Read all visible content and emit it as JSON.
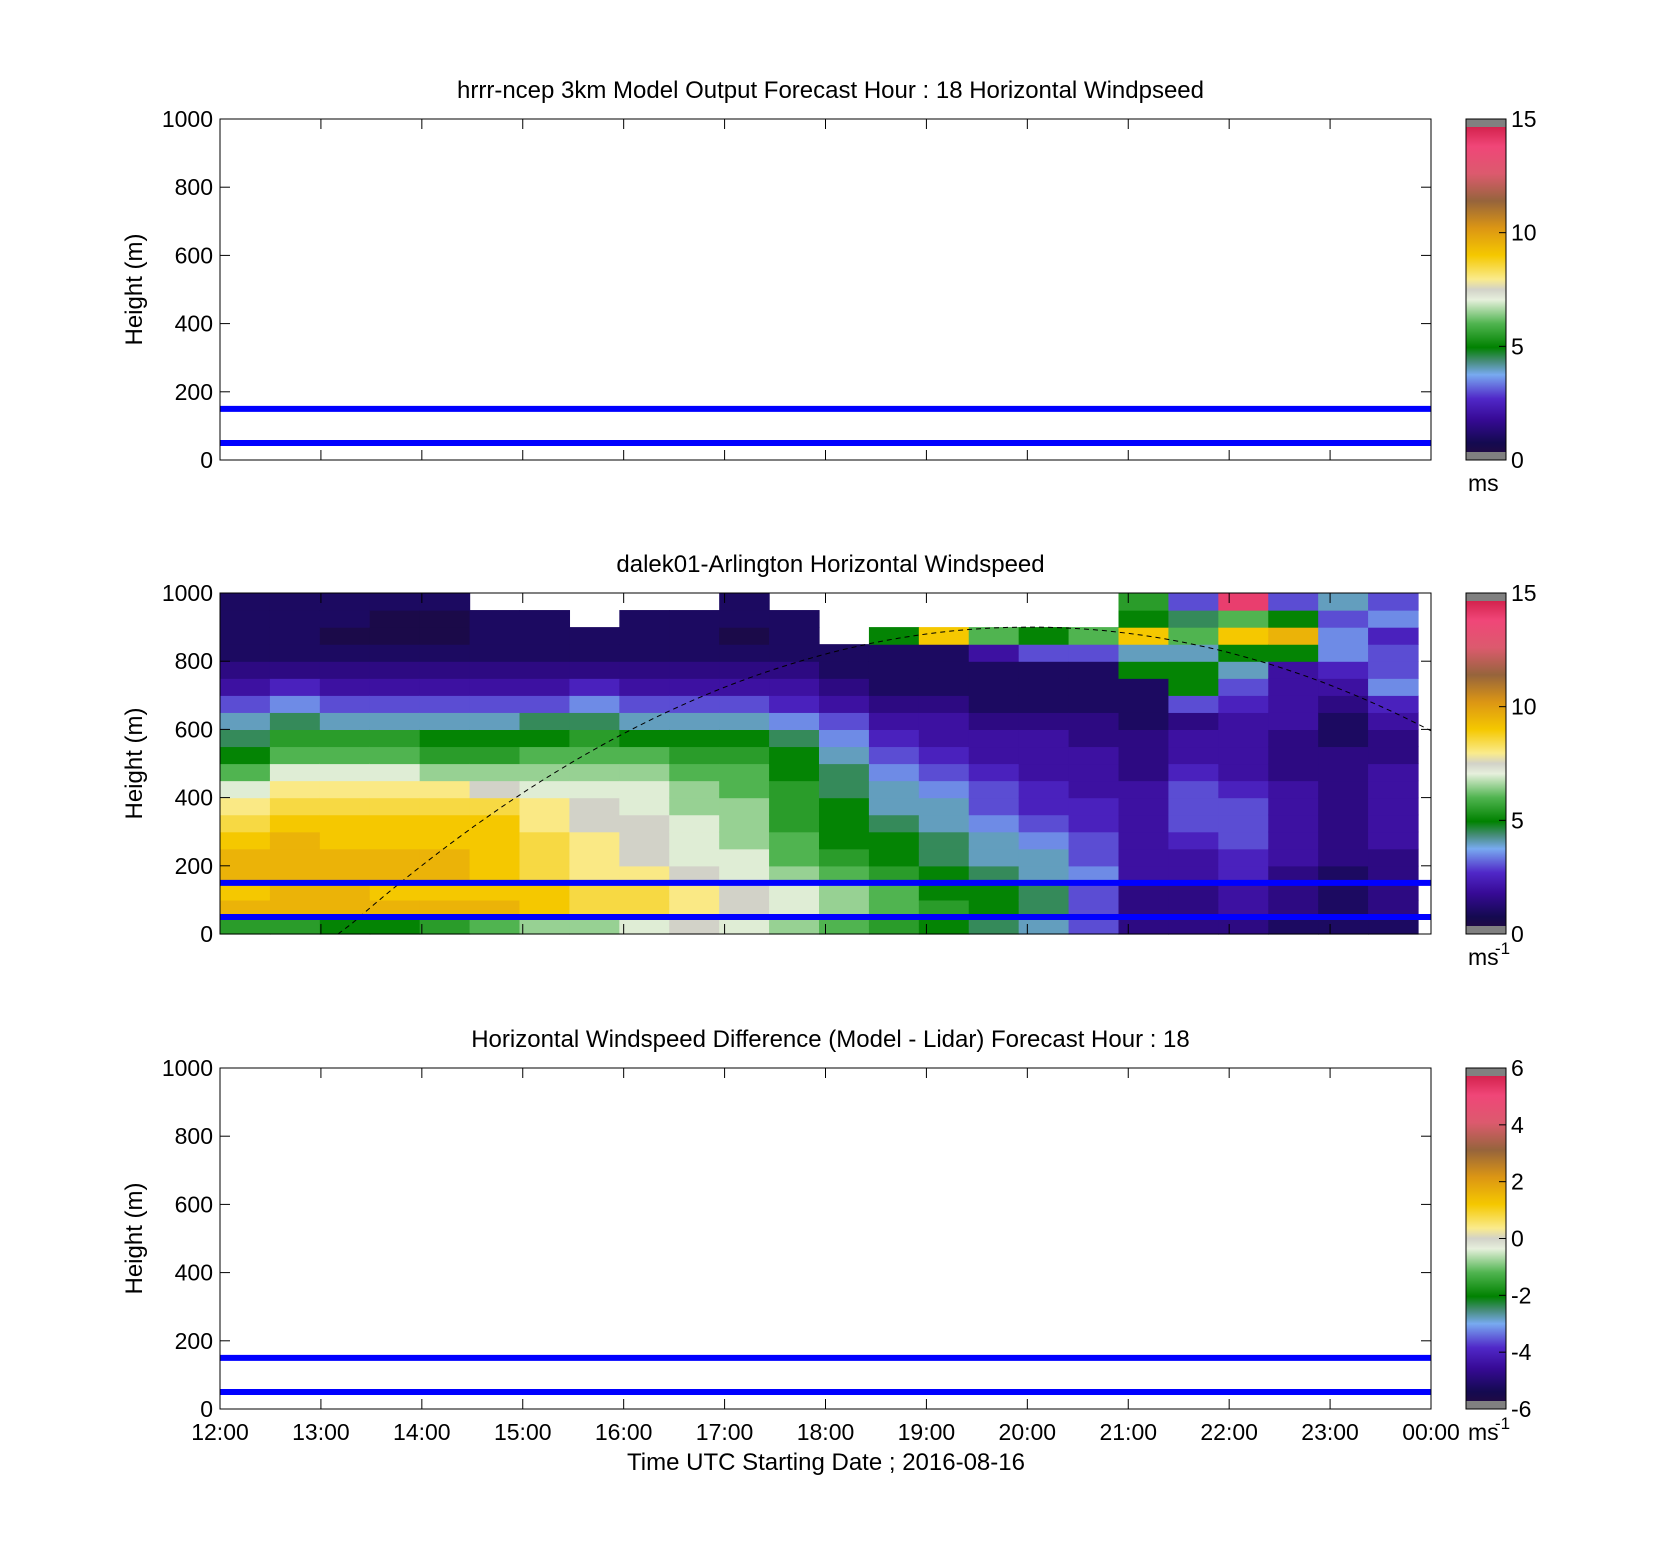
{
  "chart_data": [
    {
      "type": "heatmap",
      "title": "hrrr-ncep 3km Model Output   Forecast Hour : 18 Horizontal Windpseed",
      "xlabel": "",
      "ylabel": "Height (m)",
      "xlim": [
        "12:00",
        "00:00"
      ],
      "ylim": [
        0,
        1000
      ],
      "yticks": [
        "0",
        "200",
        "400",
        "600",
        "800",
        "1000"
      ],
      "grid": false,
      "reference_lines_m": [
        150,
        50
      ],
      "reference_line_color": "#0000ff",
      "colorbar": {
        "ticks": [
          "0",
          "5",
          "10",
          "15"
        ],
        "range": [
          0,
          15
        ],
        "unit_label": "ms"
      },
      "values": []
    },
    {
      "type": "heatmap",
      "title": "dalek01-Arlington  Horizontal Windspeed",
      "xlabel": "",
      "ylabel": "Height (m)",
      "xlim": [
        "12:00",
        "00:00"
      ],
      "ylim": [
        0,
        1000
      ],
      "yticks": [
        "0",
        "200",
        "400",
        "600",
        "800",
        "1000"
      ],
      "grid": false,
      "reference_lines_m": [
        150,
        50
      ],
      "reference_line_color": "#0000ff",
      "colorbar": {
        "ticks": [
          "0",
          "5",
          "10",
          "15"
        ],
        "range": [
          0,
          15
        ],
        "unit_label": "ms",
        "unit_exp": "-1"
      },
      "height_bins_m": [
        25,
        75,
        125,
        175,
        225,
        275,
        325,
        375,
        425,
        475,
        525,
        575,
        625,
        675,
        725,
        775,
        825,
        875,
        925,
        975
      ],
      "time_bins_utc": [
        "12:00",
        "12:30",
        "13:00",
        "13:30",
        "14:00",
        "14:30",
        "15:00",
        "15:30",
        "16:00",
        "16:30",
        "17:00",
        "17:30",
        "18:00",
        "18:30",
        "19:00",
        "19:30",
        "20:00",
        "20:30",
        "21:00",
        "21:30",
        "22:00",
        "22:30",
        "23:00",
        "23:30"
      ],
      "windspeed_profiles_ms": [
        [
          5.5,
          9.5,
          9.0,
          9.5,
          9.5,
          9.0,
          8.5,
          8.0,
          7.0,
          6.0,
          5.0,
          4.5,
          4.0,
          3.0,
          2.0,
          1.5,
          1.0,
          1.0,
          1.0,
          1.0
        ],
        [
          5.5,
          9.5,
          9.5,
          9.5,
          9.5,
          9.5,
          9.0,
          8.5,
          8.0,
          7.0,
          6.0,
          5.5,
          4.5,
          3.5,
          2.5,
          1.5,
          1.0,
          1.0,
          1.0,
          1.0
        ],
        [
          5.0,
          9.5,
          9.5,
          9.5,
          9.5,
          9.0,
          9.0,
          8.5,
          8.0,
          7.0,
          6.0,
          5.5,
          4.0,
          3.0,
          2.0,
          1.5,
          1.0,
          0.5,
          1.0,
          1.0
        ],
        [
          5.0,
          9.5,
          9.0,
          9.5,
          9.5,
          9.0,
          9.0,
          8.5,
          8.0,
          7.0,
          6.0,
          5.5,
          4.0,
          3.0,
          2.0,
          1.5,
          1.0,
          0.5,
          0.5,
          1.0
        ],
        [
          5.5,
          9.5,
          9.0,
          9.5,
          9.5,
          9.0,
          9.0,
          8.5,
          8.0,
          6.5,
          5.5,
          5.0,
          4.0,
          3.0,
          2.0,
          1.5,
          1.0,
          0.5,
          0.5,
          1.0
        ],
        [
          6.0,
          9.5,
          9.0,
          9.0,
          9.0,
          9.0,
          9.0,
          8.5,
          7.5,
          6.5,
          5.5,
          5.0,
          4.0,
          3.0,
          2.0,
          1.5,
          1.0,
          1.0,
          1.0,
          null
        ],
        [
          6.5,
          9.0,
          9.0,
          8.5,
          8.5,
          8.5,
          8.0,
          8.0,
          7.0,
          6.5,
          6.0,
          5.0,
          4.5,
          3.0,
          2.0,
          1.5,
          1.0,
          1.0,
          1.0,
          null
        ],
        [
          6.5,
          8.5,
          8.5,
          8.0,
          8.0,
          8.0,
          7.5,
          7.5,
          7.0,
          6.5,
          6.0,
          5.5,
          4.5,
          3.5,
          2.5,
          1.5,
          1.0,
          1.0,
          null,
          null
        ],
        [
          7.0,
          8.5,
          8.5,
          8.0,
          7.5,
          7.5,
          7.5,
          7.0,
          7.0,
          6.5,
          6.0,
          5.0,
          4.0,
          3.0,
          2.0,
          1.5,
          1.0,
          1.0,
          1.0,
          null
        ],
        [
          7.5,
          8.0,
          8.0,
          7.5,
          7.0,
          7.0,
          7.0,
          6.5,
          6.5,
          6.0,
          5.5,
          5.0,
          4.0,
          3.0,
          2.0,
          1.5,
          1.0,
          1.0,
          1.0,
          null
        ],
        [
          7.0,
          7.5,
          7.5,
          7.0,
          7.0,
          6.5,
          6.5,
          6.5,
          6.0,
          6.0,
          5.5,
          5.0,
          4.0,
          3.0,
          2.0,
          1.5,
          1.0,
          0.5,
          1.0,
          1.0
        ],
        [
          6.5,
          7.0,
          7.0,
          6.5,
          6.0,
          6.0,
          5.5,
          5.5,
          5.5,
          5.0,
          5.0,
          4.5,
          3.5,
          2.5,
          2.0,
          1.5,
          1.0,
          1.0,
          1.0,
          null
        ],
        [
          6.0,
          6.5,
          6.5,
          6.0,
          5.5,
          5.0,
          5.0,
          5.0,
          4.5,
          4.5,
          4.0,
          3.5,
          3.0,
          2.0,
          1.5,
          1.0,
          1.0,
          null,
          null,
          null
        ],
        [
          5.5,
          6.0,
          6.0,
          5.5,
          5.0,
          5.0,
          4.5,
          4.0,
          4.0,
          3.5,
          3.0,
          2.5,
          2.0,
          1.5,
          1.0,
          1.0,
          1.0,
          5.0,
          null,
          null
        ],
        [
          5.0,
          5.5,
          5.0,
          5.0,
          4.5,
          4.5,
          4.0,
          4.0,
          3.5,
          3.0,
          2.5,
          2.0,
          2.0,
          1.5,
          1.0,
          1.0,
          1.0,
          9.0,
          null,
          null
        ],
        [
          4.5,
          5.0,
          5.0,
          4.5,
          4.0,
          4.0,
          3.5,
          3.0,
          3.0,
          2.5,
          2.0,
          2.0,
          1.5,
          1.0,
          1.0,
          1.0,
          2.0,
          6.0,
          null,
          null
        ],
        [
          4.0,
          4.5,
          4.5,
          4.0,
          4.0,
          3.5,
          3.0,
          2.5,
          2.5,
          2.0,
          2.0,
          2.0,
          1.5,
          1.0,
          1.0,
          1.0,
          3.0,
          5.0,
          null,
          null
        ],
        [
          3.0,
          3.0,
          3.0,
          3.5,
          3.0,
          3.0,
          2.5,
          2.5,
          2.0,
          2.0,
          2.0,
          1.5,
          1.5,
          1.0,
          1.0,
          1.0,
          3.0,
          6.0,
          null,
          null
        ],
        [
          1.5,
          1.5,
          1.5,
          2.0,
          2.0,
          2.0,
          2.0,
          2.0,
          2.0,
          1.5,
          1.5,
          1.5,
          1.0,
          1.0,
          1.0,
          5.0,
          4.0,
          9.0,
          5.0,
          5.5
        ],
        [
          1.5,
          1.5,
          1.5,
          2.0,
          2.0,
          2.5,
          3.0,
          3.0,
          3.0,
          2.5,
          2.0,
          2.0,
          1.5,
          3.0,
          5.0,
          5.0,
          4.0,
          6.0,
          4.5,
          3.0
        ],
        [
          1.5,
          2.0,
          2.0,
          2.5,
          2.5,
          3.0,
          3.0,
          3.0,
          2.5,
          2.0,
          2.0,
          2.0,
          2.0,
          2.5,
          3.0,
          4.0,
          5.0,
          9.0,
          6.0,
          14.0
        ],
        [
          1.0,
          1.5,
          1.5,
          1.5,
          2.0,
          2.0,
          2.0,
          2.0,
          2.0,
          1.5,
          1.5,
          1.5,
          2.0,
          2.0,
          2.0,
          2.0,
          5.0,
          9.5,
          5.0,
          3.0
        ],
        [
          1.0,
          1.0,
          1.0,
          1.0,
          1.5,
          1.5,
          1.5,
          1.5,
          1.5,
          1.5,
          1.5,
          1.0,
          1.0,
          1.5,
          2.0,
          2.5,
          3.5,
          3.5,
          3.0,
          4.0
        ],
        [
          1.0,
          1.5,
          1.5,
          1.5,
          1.5,
          2.0,
          2.0,
          2.0,
          2.0,
          2.0,
          1.5,
          1.5,
          2.0,
          2.5,
          3.5,
          3.0,
          3.0,
          2.5,
          3.5,
          3.0
        ]
      ]
    },
    {
      "type": "heatmap",
      "title": "Horizontal Windspeed Difference (Model - Lidar) Forecast Hour : 18",
      "xlabel": "Time UTC  Starting Date ; 2016-08-16",
      "ylabel": "Height (m)",
      "xticks": [
        "12:00",
        "13:00",
        "14:00",
        "15:00",
        "16:00",
        "17:00",
        "18:00",
        "19:00",
        "20:00",
        "21:00",
        "22:00",
        "23:00",
        "00:00"
      ],
      "xlim": [
        "12:00",
        "00:00"
      ],
      "ylim": [
        0,
        1000
      ],
      "yticks": [
        "0",
        "200",
        "400",
        "600",
        "800",
        "1000"
      ],
      "grid": false,
      "reference_lines_m": [
        150,
        50
      ],
      "reference_line_color": "#0000ff",
      "colorbar": {
        "ticks": [
          "-6",
          "-4",
          "-2",
          "0",
          "2",
          "4",
          "6"
        ],
        "range": [
          -6,
          6
        ],
        "unit_label": "ms",
        "unit_exp": "-1"
      },
      "values": []
    }
  ]
}
